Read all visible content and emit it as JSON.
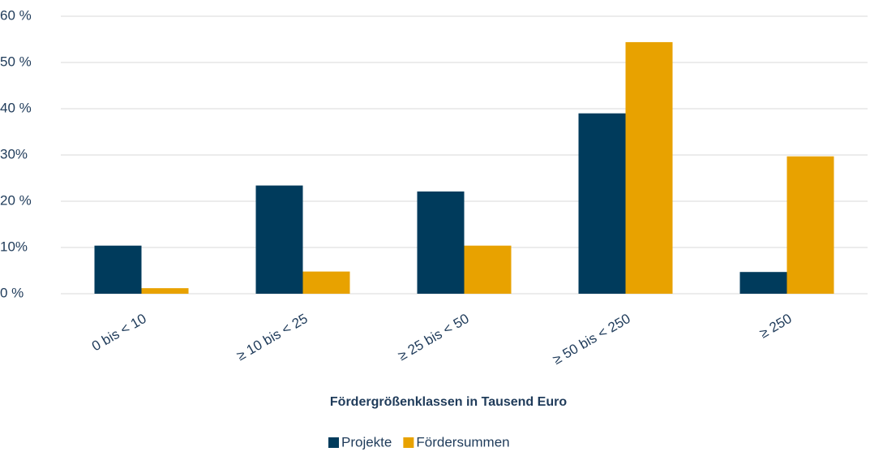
{
  "chart_data": {
    "type": "bar",
    "x_label": "Fördergrößenklassen in Tausend Euro",
    "categories": [
      "0 bis < 10",
      "≥ 10 bis < 25",
      "≥ 25 bis < 50",
      "≥ 50 bis < 250",
      "≥  250"
    ],
    "series": [
      {
        "name": "Projekte",
        "color": "#003b5c",
        "values": [
          10.4,
          23.4,
          22.1,
          39.0,
          4.7
        ]
      },
      {
        "name": "Fördersummen",
        "color": "#e8a200",
        "values": [
          1.2,
          4.8,
          10.4,
          54.4,
          29.7
        ]
      }
    ],
    "ylim": [
      0,
      60
    ],
    "yticks": [
      {
        "value": 0,
        "label": "0 %"
      },
      {
        "value": 10,
        "label": "10%"
      },
      {
        "value": 20,
        "label": "20 %"
      },
      {
        "value": 30,
        "label": "30%"
      },
      {
        "value": 40,
        "label": "40 %"
      },
      {
        "value": 50,
        "label": "50 %"
      },
      {
        "value": 60,
        "label": "60 %"
      }
    ],
    "grid": true,
    "legend": "bottom"
  }
}
